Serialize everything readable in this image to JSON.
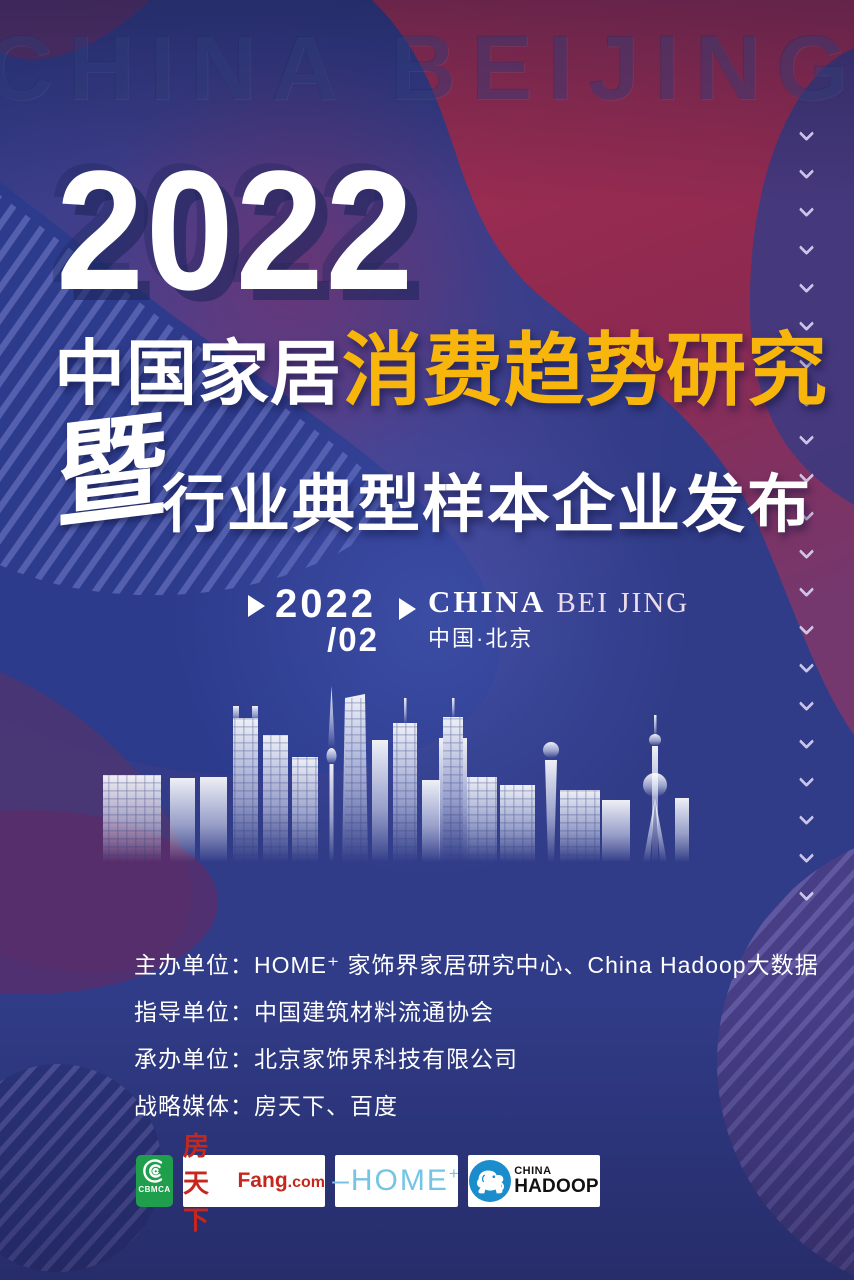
{
  "poster": {
    "watermark": "CHINA BEIJING",
    "year": "2022",
    "title": {
      "white_part": "中国家居",
      "yellow_part": "消费趋势研究",
      "ji_char": "暨",
      "subtitle": "行业典型样本企业发布"
    },
    "date_block": {
      "year": "2022",
      "month": "/02",
      "city_en_1": "CHINA",
      "city_en_2": "BEI JING",
      "city_cn": "中国·北京"
    },
    "organizers": [
      {
        "label": "主办单位：",
        "value": "HOME⁺ 家饰界家居研究中心、China Hadoop大数据"
      },
      {
        "label": "指导单位：",
        "value": "中国建筑材料流通协会"
      },
      {
        "label": "承办单位：",
        "value": "北京家饰界科技有限公司"
      },
      {
        "label": "战略媒体：",
        "value": "房天下、百度"
      }
    ],
    "logos": {
      "cbmca": {
        "caption": "CBMCA",
        "color": "#1f9e4c"
      },
      "fang": {
        "cn": "房天下",
        "en": "Fang",
        "dotcom": ".com",
        "color": "#c5271d"
      },
      "home": {
        "dash": "–",
        "text": "HOME",
        "plus": "+",
        "color": "#74c4e6"
      },
      "hadoop": {
        "line1": "CHINA",
        "line2": "HADOOP",
        "circle_color": "#1b8ccc"
      }
    },
    "colors": {
      "accent_yellow": "#f8b60d",
      "background_blue": "#313c88",
      "red_blob": "#9e2c52",
      "navy_blob": "#2b3b8c"
    },
    "decor": {
      "chevron_count": 21
    }
  }
}
